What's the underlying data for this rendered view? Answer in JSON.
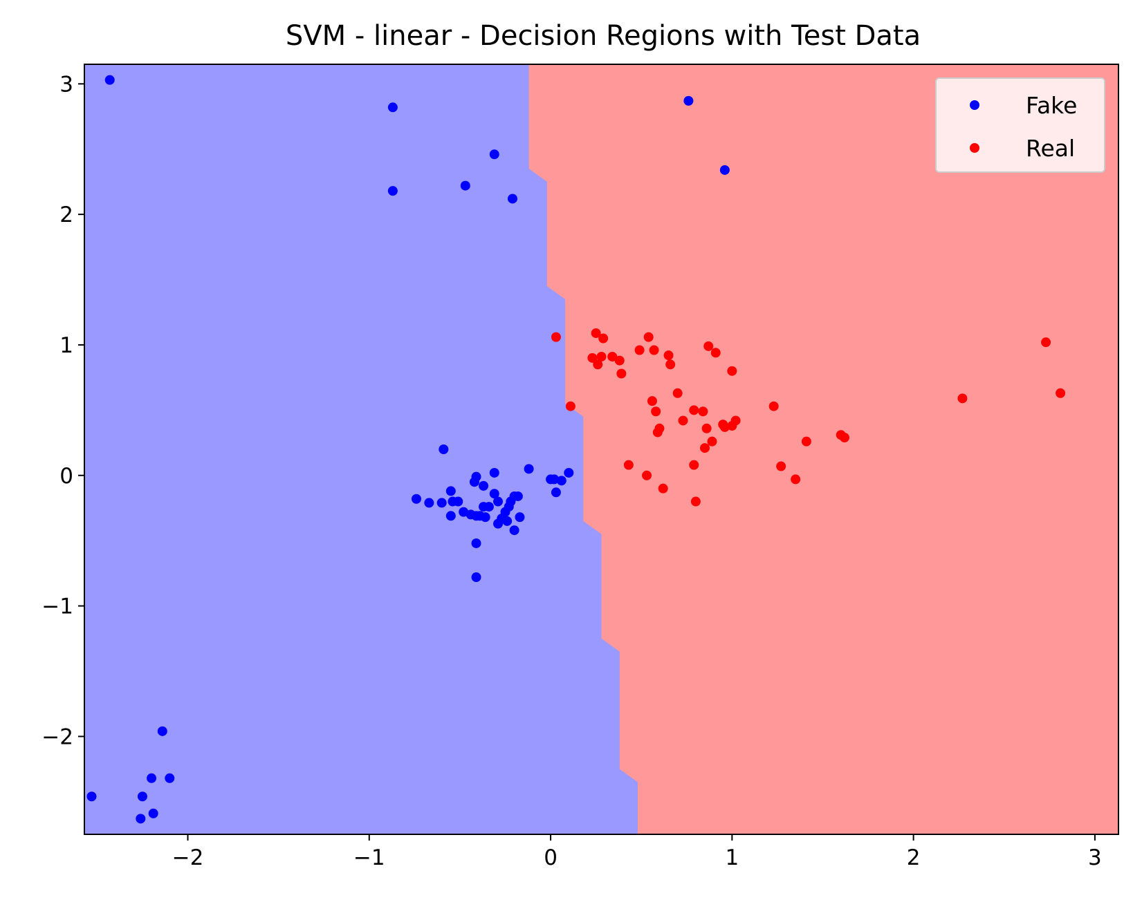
{
  "chart_data": {
    "type": "scatter",
    "title": "SVM - linear - Decision Regions with Test Data",
    "xlabel": "",
    "ylabel": "",
    "xlim": [
      -2.57,
      3.13
    ],
    "ylim": [
      -2.75,
      3.15
    ],
    "xticks": [
      -2,
      -1,
      0,
      1,
      2,
      3
    ],
    "yticks": [
      -2,
      -1,
      0,
      1,
      2,
      3
    ],
    "xtick_labels": [
      "−2",
      "−1",
      "0",
      "1",
      "2",
      "3"
    ],
    "ytick_labels": [
      "−2",
      "−1",
      "0",
      "1",
      "2",
      "3"
    ],
    "grid": false,
    "legend_position": "top-right",
    "decision_regions": {
      "left_color": "#9999ff",
      "right_color": "#ff9999",
      "boundary": [
        [
          -0.12,
          3.15
        ],
        [
          -0.12,
          2.35
        ],
        [
          -0.02,
          2.25
        ],
        [
          -0.02,
          1.45
        ],
        [
          0.08,
          1.35
        ],
        [
          0.08,
          0.55
        ],
        [
          0.18,
          0.45
        ],
        [
          0.18,
          -0.35
        ],
        [
          0.28,
          -0.45
        ],
        [
          0.28,
          -1.25
        ],
        [
          0.38,
          -1.35
        ],
        [
          0.38,
          -2.25
        ],
        [
          0.48,
          -2.35
        ],
        [
          0.48,
          -2.75
        ]
      ]
    },
    "series": [
      {
        "name": "Fake",
        "color": "#0000ff",
        "points": [
          [
            -2.43,
            3.03
          ],
          [
            -0.87,
            2.82
          ],
          [
            -0.31,
            2.46
          ],
          [
            -0.87,
            2.18
          ],
          [
            -0.47,
            2.22
          ],
          [
            -0.21,
            2.12
          ],
          [
            0.76,
            2.87
          ],
          [
            0.96,
            2.34
          ],
          [
            -0.59,
            0.2
          ],
          [
            -0.74,
            -0.18
          ],
          [
            -0.67,
            -0.21
          ],
          [
            -0.6,
            -0.21
          ],
          [
            -0.55,
            -0.12
          ],
          [
            -0.54,
            -0.2
          ],
          [
            -0.51,
            -0.2
          ],
          [
            -0.55,
            -0.31
          ],
          [
            -0.48,
            -0.28
          ],
          [
            -0.44,
            -0.3
          ],
          [
            -0.42,
            -0.05
          ],
          [
            -0.41,
            -0.01
          ],
          [
            -0.37,
            -0.08
          ],
          [
            -0.41,
            -0.31
          ],
          [
            -0.39,
            -0.31
          ],
          [
            -0.37,
            -0.24
          ],
          [
            -0.36,
            -0.32
          ],
          [
            -0.34,
            -0.24
          ],
          [
            -0.31,
            0.02
          ],
          [
            -0.31,
            -0.14
          ],
          [
            -0.29,
            -0.2
          ],
          [
            -0.29,
            -0.37
          ],
          [
            -0.27,
            -0.33
          ],
          [
            -0.25,
            -0.28
          ],
          [
            -0.24,
            -0.35
          ],
          [
            -0.23,
            -0.24
          ],
          [
            -0.22,
            -0.2
          ],
          [
            -0.2,
            -0.42
          ],
          [
            -0.2,
            -0.16
          ],
          [
            -0.18,
            -0.16
          ],
          [
            -0.17,
            -0.32
          ],
          [
            -0.12,
            0.05
          ],
          [
            -0.41,
            -0.52
          ],
          [
            -0.41,
            -0.78
          ],
          [
            0.0,
            -0.03
          ],
          [
            0.02,
            -0.03
          ],
          [
            0.06,
            -0.04
          ],
          [
            0.03,
            -0.13
          ],
          [
            0.1,
            0.02
          ],
          [
            -2.53,
            -2.46
          ],
          [
            -2.25,
            -2.46
          ],
          [
            -2.2,
            -2.32
          ],
          [
            -2.19,
            -2.59
          ],
          [
            -2.14,
            -1.96
          ],
          [
            -2.1,
            -2.32
          ],
          [
            -2.26,
            -2.63
          ]
        ]
      },
      {
        "name": "Real",
        "color": "#ff0000",
        "points": [
          [
            0.03,
            1.06
          ],
          [
            0.25,
            1.09
          ],
          [
            0.29,
            1.05
          ],
          [
            0.54,
            1.06
          ],
          [
            0.23,
            0.9
          ],
          [
            0.26,
            0.85
          ],
          [
            0.28,
            0.91
          ],
          [
            0.34,
            0.91
          ],
          [
            0.38,
            0.88
          ],
          [
            0.39,
            0.78
          ],
          [
            0.49,
            0.96
          ],
          [
            0.57,
            0.96
          ],
          [
            0.65,
            0.92
          ],
          [
            0.66,
            0.85
          ],
          [
            0.87,
            0.99
          ],
          [
            0.91,
            0.94
          ],
          [
            1.0,
            0.8
          ],
          [
            0.11,
            0.53
          ],
          [
            0.56,
            0.57
          ],
          [
            0.58,
            0.49
          ],
          [
            0.7,
            0.63
          ],
          [
            0.73,
            0.42
          ],
          [
            0.79,
            0.5
          ],
          [
            0.84,
            0.49
          ],
          [
            0.86,
            0.36
          ],
          [
            0.6,
            0.36
          ],
          [
            0.59,
            0.33
          ],
          [
            0.89,
            0.26
          ],
          [
            0.85,
            0.21
          ],
          [
            0.95,
            0.39
          ],
          [
            0.96,
            0.37
          ],
          [
            1.0,
            0.38
          ],
          [
            1.02,
            0.42
          ],
          [
            1.23,
            0.53
          ],
          [
            1.41,
            0.26
          ],
          [
            1.6,
            0.31
          ],
          [
            1.62,
            0.29
          ],
          [
            2.27,
            0.59
          ],
          [
            2.73,
            1.02
          ],
          [
            2.81,
            0.63
          ],
          [
            0.43,
            0.08
          ],
          [
            0.53,
            0.0
          ],
          [
            0.62,
            -0.1
          ],
          [
            0.79,
            0.08
          ],
          [
            0.8,
            -0.2
          ],
          [
            1.27,
            0.07
          ],
          [
            1.35,
            -0.03
          ]
        ]
      }
    ]
  }
}
